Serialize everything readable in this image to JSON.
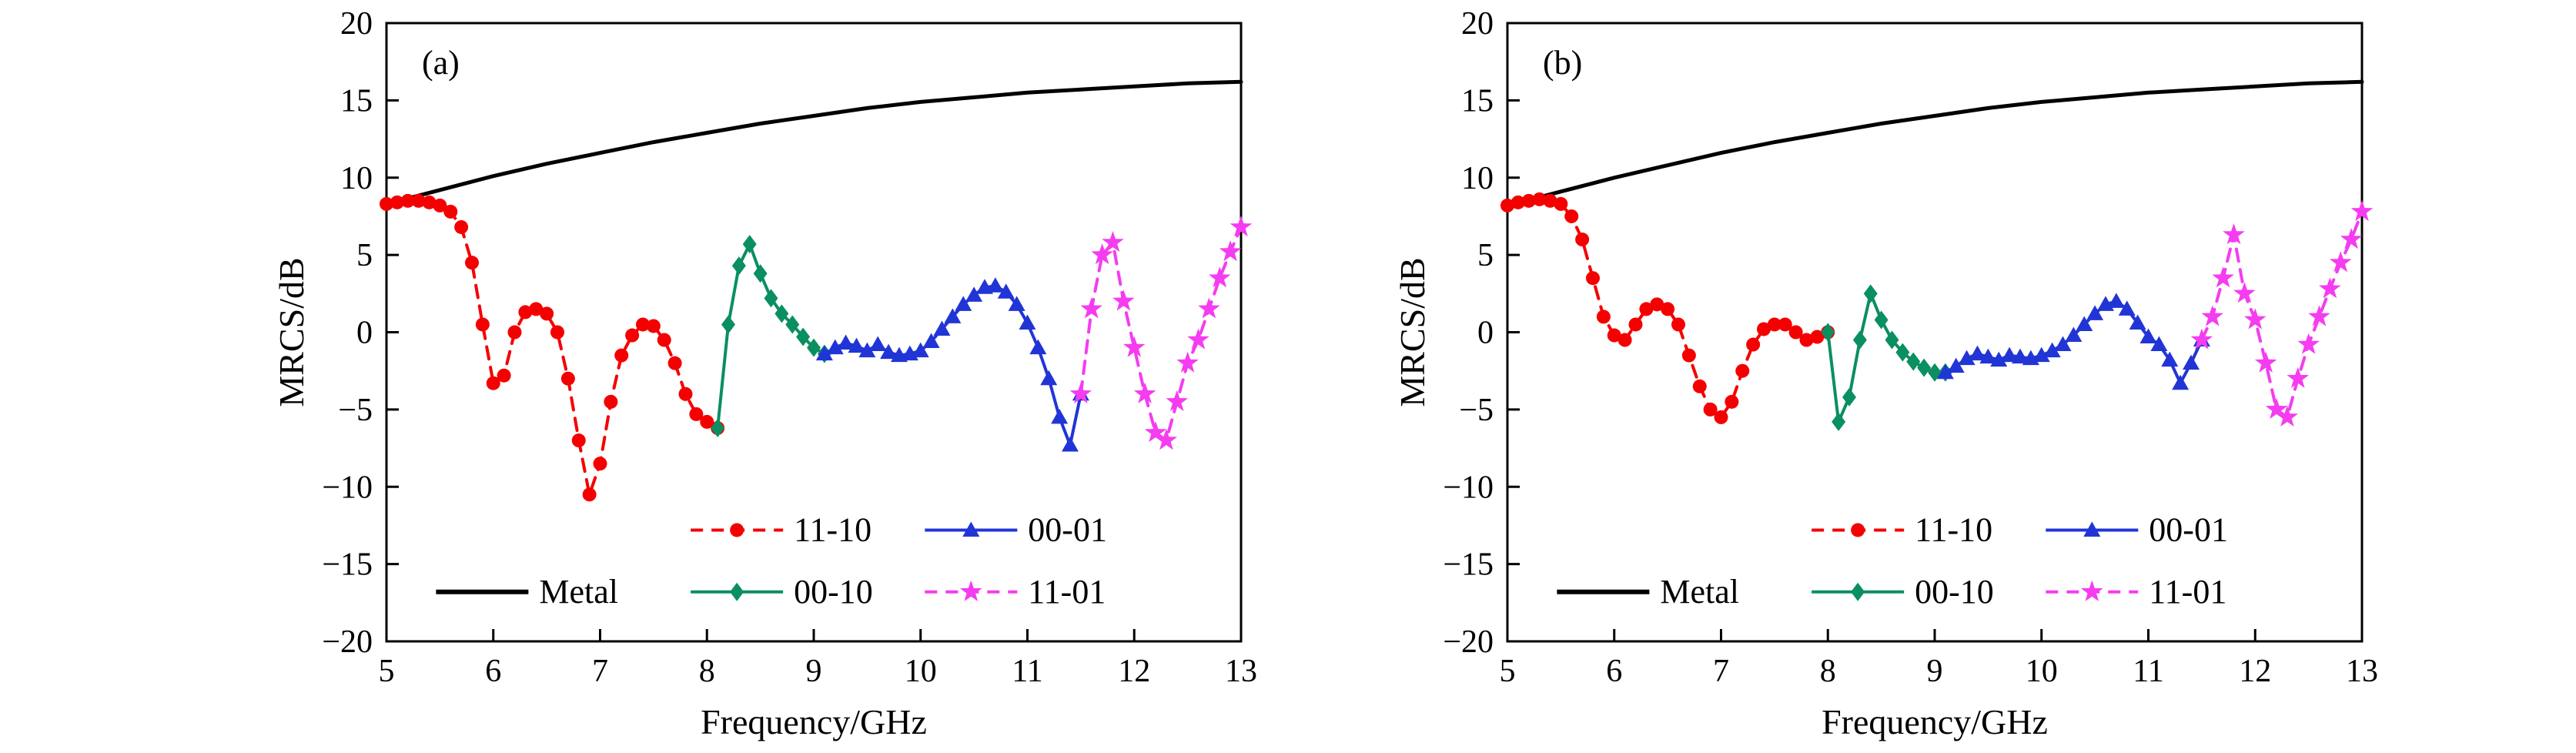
{
  "figure": {
    "background": "#ffffff",
    "panel_count": 2
  },
  "chart_data": [
    {
      "type": "line",
      "panel_label": "(a)",
      "xlabel": "Frequency/GHz",
      "ylabel": "MRCS/dB",
      "xlim": [
        5,
        13
      ],
      "ylim": [
        -20,
        20
      ],
      "xticks": [
        5,
        6,
        7,
        8,
        9,
        10,
        11,
        12,
        13
      ],
      "yticks": [
        -20,
        -15,
        -10,
        -5,
        0,
        5,
        10,
        15,
        20
      ],
      "grid": false,
      "legend_position": "inside-bottom",
      "series": [
        {
          "name": "Metal",
          "color": "#000000",
          "line": "solid",
          "marker": "none",
          "legend": {
            "col": 0,
            "row": 1
          },
          "x": [
            5,
            5.5,
            6,
            6.5,
            7,
            7.5,
            8,
            8.5,
            9,
            9.5,
            10,
            10.5,
            11,
            11.5,
            12,
            12.5,
            13
          ],
          "y": [
            8.3,
            9.2,
            10.1,
            10.9,
            11.6,
            12.3,
            12.9,
            13.5,
            14.0,
            14.5,
            14.9,
            15.2,
            15.5,
            15.7,
            15.9,
            16.1,
            16.2
          ]
        },
        {
          "name": "11-10",
          "color": "#f40000",
          "line": "dashed",
          "marker": "circle",
          "legend": {
            "col": 1,
            "row": 0
          },
          "x": [
            5.0,
            5.1,
            5.2,
            5.3,
            5.4,
            5.5,
            5.6,
            5.7,
            5.8,
            5.9,
            6.0,
            6.1,
            6.2,
            6.3,
            6.4,
            6.5,
            6.6,
            6.7,
            6.8,
            6.9,
            7.0,
            7.1,
            7.2,
            7.3,
            7.4,
            7.5,
            7.6,
            7.7,
            7.8,
            7.9,
            8.0,
            8.1
          ],
          "y": [
            8.3,
            8.4,
            8.5,
            8.5,
            8.4,
            8.2,
            7.8,
            6.8,
            4.5,
            0.5,
            -3.3,
            -2.8,
            0.0,
            1.3,
            1.5,
            1.2,
            0.0,
            -3.0,
            -7.0,
            -10.5,
            -8.5,
            -4.5,
            -1.5,
            -0.2,
            0.5,
            0.4,
            -0.5,
            -2.0,
            -4.0,
            -5.3,
            -5.8,
            -6.2
          ]
        },
        {
          "name": "00-10",
          "color": "#0a8f60",
          "line": "solid",
          "marker": "diamond",
          "legend": {
            "col": 1,
            "row": 1
          },
          "x": [
            8.1,
            8.2,
            8.3,
            8.4,
            8.5,
            8.6,
            8.7,
            8.8,
            8.9,
            9.0,
            9.1
          ],
          "y": [
            -6.2,
            0.5,
            4.3,
            5.7,
            3.8,
            2.2,
            1.2,
            0.5,
            -0.3,
            -1.0,
            -1.4
          ]
        },
        {
          "name": "00-01",
          "color": "#2135d6",
          "line": "solid",
          "marker": "triangle",
          "legend": {
            "col": 2,
            "row": 0
          },
          "x": [
            9.1,
            9.2,
            9.3,
            9.4,
            9.5,
            9.6,
            9.7,
            9.8,
            9.9,
            10.0,
            10.1,
            10.2,
            10.3,
            10.4,
            10.5,
            10.6,
            10.7,
            10.8,
            10.9,
            11.0,
            11.1,
            11.2,
            11.3,
            11.4,
            11.5
          ],
          "y": [
            -1.4,
            -1.0,
            -0.7,
            -0.9,
            -1.2,
            -0.8,
            -1.3,
            -1.5,
            -1.4,
            -1.2,
            -0.6,
            0.2,
            1.0,
            1.8,
            2.4,
            2.9,
            3.0,
            2.6,
            1.8,
            0.6,
            -1.0,
            -3.0,
            -5.5,
            -7.3,
            -4.0
          ]
        },
        {
          "name": "11-01",
          "color": "#f53cf0",
          "line": "dashed",
          "marker": "star",
          "legend": {
            "col": 2,
            "row": 1
          },
          "x": [
            11.5,
            11.6,
            11.7,
            11.8,
            11.9,
            12.0,
            12.1,
            12.2,
            12.3,
            12.4,
            12.5,
            12.6,
            12.7,
            12.8,
            12.9,
            13.0
          ],
          "y": [
            -4.0,
            1.5,
            5.0,
            5.8,
            2.0,
            -1.0,
            -4.0,
            -6.5,
            -7.0,
            -4.5,
            -2.0,
            -0.5,
            1.5,
            3.5,
            5.2,
            6.8
          ]
        }
      ]
    },
    {
      "type": "line",
      "panel_label": "(b)",
      "xlabel": "Frequency/GHz",
      "ylabel": "MRCS/dB",
      "xlim": [
        5,
        13
      ],
      "ylim": [
        -20,
        20
      ],
      "xticks": [
        5,
        6,
        7,
        8,
        9,
        10,
        11,
        12,
        13
      ],
      "yticks": [
        -20,
        -15,
        -10,
        -5,
        0,
        5,
        10,
        15,
        20
      ],
      "grid": false,
      "legend_position": "inside-bottom",
      "series": [
        {
          "name": "Metal",
          "color": "#000000",
          "line": "solid",
          "marker": "none",
          "legend": {
            "col": 0,
            "row": 1
          },
          "x": [
            5,
            5.5,
            6,
            6.5,
            7,
            7.5,
            8,
            8.5,
            9,
            9.5,
            10,
            10.5,
            11,
            11.5,
            12,
            12.5,
            13
          ],
          "y": [
            8.2,
            9.1,
            10.0,
            10.8,
            11.6,
            12.3,
            12.9,
            13.5,
            14.0,
            14.5,
            14.9,
            15.2,
            15.5,
            15.7,
            15.9,
            16.1,
            16.2
          ]
        },
        {
          "name": "11-10",
          "color": "#f40000",
          "line": "dashed",
          "marker": "circle",
          "legend": {
            "col": 1,
            "row": 0
          },
          "x": [
            5.0,
            5.1,
            5.2,
            5.3,
            5.4,
            5.5,
            5.6,
            5.7,
            5.8,
            5.9,
            6.0,
            6.1,
            6.2,
            6.3,
            6.4,
            6.5,
            6.6,
            6.7,
            6.8,
            6.9,
            7.0,
            7.1,
            7.2,
            7.3,
            7.4,
            7.5,
            7.6,
            7.7,
            7.8,
            7.9,
            8.0
          ],
          "y": [
            8.2,
            8.4,
            8.5,
            8.6,
            8.5,
            8.3,
            7.5,
            6.0,
            3.5,
            1.0,
            -0.2,
            -0.5,
            0.5,
            1.5,
            1.8,
            1.5,
            0.5,
            -1.5,
            -3.5,
            -5.0,
            -5.5,
            -4.5,
            -2.5,
            -0.8,
            0.2,
            0.5,
            0.5,
            0.0,
            -0.5,
            -0.3,
            0.0
          ]
        },
        {
          "name": "00-10",
          "color": "#0a8f60",
          "line": "solid",
          "marker": "diamond",
          "legend": {
            "col": 1,
            "row": 1
          },
          "x": [
            8.0,
            8.1,
            8.2,
            8.3,
            8.4,
            8.5,
            8.6,
            8.7,
            8.8,
            8.9,
            9.0,
            9.1
          ],
          "y": [
            0.0,
            -5.8,
            -4.2,
            -0.5,
            2.5,
            0.8,
            -0.5,
            -1.3,
            -1.9,
            -2.3,
            -2.6,
            -2.6
          ]
        },
        {
          "name": "00-01",
          "color": "#2135d6",
          "line": "solid",
          "marker": "triangle",
          "legend": {
            "col": 2,
            "row": 0
          },
          "x": [
            9.1,
            9.2,
            9.3,
            9.4,
            9.5,
            9.6,
            9.7,
            9.8,
            9.9,
            10.0,
            10.1,
            10.2,
            10.3,
            10.4,
            10.5,
            10.6,
            10.7,
            10.8,
            10.9,
            11.0,
            11.1,
            11.2,
            11.3,
            11.4,
            11.5
          ],
          "y": [
            -2.6,
            -2.2,
            -1.7,
            -1.4,
            -1.6,
            -1.8,
            -1.5,
            -1.6,
            -1.7,
            -1.5,
            -1.2,
            -0.8,
            -0.2,
            0.5,
            1.2,
            1.8,
            2.0,
            1.5,
            0.6,
            -0.3,
            -0.8,
            -1.8,
            -3.3,
            -2.0,
            -0.5
          ]
        },
        {
          "name": "11-01",
          "color": "#f53cf0",
          "line": "dashed",
          "marker": "star",
          "legend": {
            "col": 2,
            "row": 1
          },
          "x": [
            11.5,
            11.6,
            11.7,
            11.8,
            11.9,
            12.0,
            12.1,
            12.2,
            12.3,
            12.4,
            12.5,
            12.6,
            12.7,
            12.8,
            12.9,
            13.0
          ],
          "y": [
            -0.5,
            1.0,
            3.5,
            6.3,
            2.5,
            0.8,
            -2.0,
            -5.0,
            -5.5,
            -3.0,
            -0.8,
            1.0,
            2.8,
            4.5,
            6.0,
            7.8
          ]
        }
      ]
    }
  ]
}
